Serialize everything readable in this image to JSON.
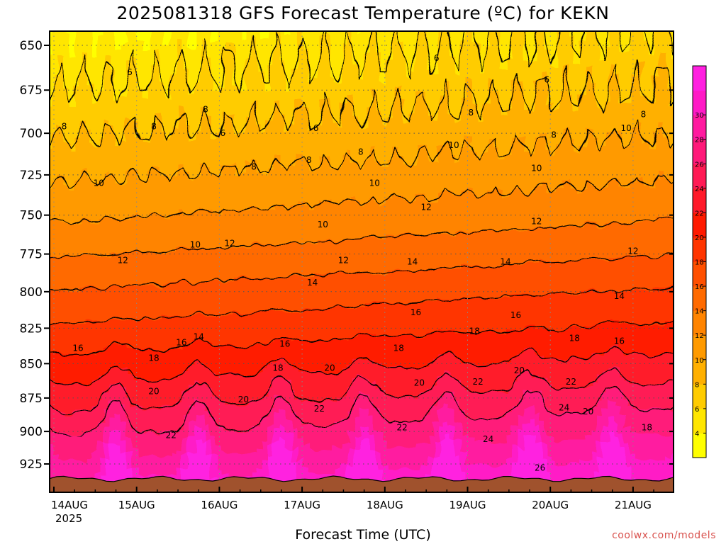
{
  "title": "2025081318 GFS Forecast Temperature (ºC) for KEKN",
  "credit": "coolwx.com/models",
  "chart_data": {
    "type": "heatmap",
    "title": "2025081318 GFS Forecast Temperature (ºC) for KEKN",
    "xlabel": "Forecast Time (UTC)",
    "ylabel": "",
    "ylim": [
      942,
      640
    ],
    "y_scale": "log",
    "xlim_hours": [
      0,
      178
    ],
    "x_ticks": [
      {
        "label": "14AUG",
        "sub": "2025",
        "hour": 0
      },
      {
        "label": "15AUG",
        "sub": "",
        "hour": 24
      },
      {
        "label": "16AUG",
        "sub": "",
        "hour": 48
      },
      {
        "label": "17AUG",
        "sub": "",
        "hour": 72
      },
      {
        "label": "18AUG",
        "sub": "",
        "hour": 96
      },
      {
        "label": "19AUG",
        "sub": "",
        "hour": 120
      },
      {
        "label": "20AUG",
        "sub": "",
        "hour": 144
      },
      {
        "label": "21AUG",
        "sub": "",
        "hour": 168
      }
    ],
    "y_ticks": [
      650,
      675,
      700,
      725,
      750,
      775,
      800,
      825,
      850,
      875,
      900,
      925
    ],
    "grid": true,
    "colorbar": {
      "placement": "right",
      "ticks": [
        4,
        6,
        8,
        10,
        12,
        14,
        16,
        18,
        20,
        22,
        24,
        26,
        28,
        30
      ],
      "colors": [
        "#ffff00",
        "#ffe600",
        "#ffcc00",
        "#ffb000",
        "#ff9a00",
        "#ff8400",
        "#ff6a00",
        "#ff5000",
        "#ff3500",
        "#ff1a00",
        "#ff1a2a",
        "#ff1a55",
        "#ff1a7a",
        "#ff1aa0",
        "#ff1ac6",
        "#ff20e0"
      ]
    },
    "ground_color": "#a0522d",
    "contour_levels": [
      6,
      8,
      10,
      12,
      14,
      16,
      18,
      20,
      22,
      24,
      26
    ],
    "contour_labels": [
      {
        "text": "6",
        "hour": 22,
        "p": 665
      },
      {
        "text": "6",
        "hour": 49,
        "p": 700
      },
      {
        "text": "6",
        "hour": 76,
        "p": 697
      },
      {
        "text": "6",
        "hour": 111,
        "p": 657
      },
      {
        "text": "6",
        "hour": 143,
        "p": 669
      },
      {
        "text": "8",
        "hour": 3,
        "p": 696
      },
      {
        "text": "8",
        "hour": 29,
        "p": 696
      },
      {
        "text": "8",
        "hour": 44,
        "p": 686
      },
      {
        "text": "8",
        "hour": 58,
        "p": 720
      },
      {
        "text": "8",
        "hour": 74,
        "p": 716
      },
      {
        "text": "8",
        "hour": 89,
        "p": 711
      },
      {
        "text": "8",
        "hour": 121,
        "p": 688
      },
      {
        "text": "8",
        "hour": 145,
        "p": 701
      },
      {
        "text": "8",
        "hour": 171,
        "p": 689
      },
      {
        "text": "10",
        "hour": 13,
        "p": 730
      },
      {
        "text": "10",
        "hour": 41,
        "p": 769
      },
      {
        "text": "10",
        "hour": 78,
        "p": 756
      },
      {
        "text": "10",
        "hour": 93,
        "p": 730
      },
      {
        "text": "10",
        "hour": 116,
        "p": 707
      },
      {
        "text": "10",
        "hour": 140,
        "p": 721
      },
      {
        "text": "10",
        "hour": 166,
        "p": 697
      },
      {
        "text": "12",
        "hour": 20,
        "p": 779
      },
      {
        "text": "12",
        "hour": 51,
        "p": 768
      },
      {
        "text": "12",
        "hour": 84,
        "p": 779
      },
      {
        "text": "12",
        "hour": 108,
        "p": 745
      },
      {
        "text": "12",
        "hour": 140,
        "p": 754
      },
      {
        "text": "12",
        "hour": 168,
        "p": 773
      },
      {
        "text": "14",
        "hour": 42,
        "p": 831
      },
      {
        "text": "14",
        "hour": 75,
        "p": 794
      },
      {
        "text": "14",
        "hour": 104,
        "p": 780
      },
      {
        "text": "14",
        "hour": 131,
        "p": 780
      },
      {
        "text": "14",
        "hour": 164,
        "p": 803
      },
      {
        "text": "16",
        "hour": 7,
        "p": 839
      },
      {
        "text": "16",
        "hour": 37,
        "p": 835
      },
      {
        "text": "16",
        "hour": 67,
        "p": 836
      },
      {
        "text": "16",
        "hour": 105,
        "p": 814
      },
      {
        "text": "16",
        "hour": 134,
        "p": 816
      },
      {
        "text": "16",
        "hour": 164,
        "p": 834
      },
      {
        "text": "18",
        "hour": 29,
        "p": 846
      },
      {
        "text": "18",
        "hour": 65,
        "p": 853
      },
      {
        "text": "18",
        "hour": 100,
        "p": 839
      },
      {
        "text": "18",
        "hour": 122,
        "p": 827
      },
      {
        "text": "18",
        "hour": 151,
        "p": 832
      },
      {
        "text": "18",
        "hour": 172,
        "p": 897
      },
      {
        "text": "20",
        "hour": 29,
        "p": 870
      },
      {
        "text": "20",
        "hour": 55,
        "p": 876
      },
      {
        "text": "20",
        "hour": 80,
        "p": 853
      },
      {
        "text": "20",
        "hour": 106,
        "p": 864
      },
      {
        "text": "20",
        "hour": 135,
        "p": 855
      },
      {
        "text": "20",
        "hour": 155,
        "p": 885
      },
      {
        "text": "22",
        "hour": 34,
        "p": 903
      },
      {
        "text": "22",
        "hour": 77,
        "p": 883
      },
      {
        "text": "22",
        "hour": 101,
        "p": 897
      },
      {
        "text": "22",
        "hour": 123,
        "p": 863
      },
      {
        "text": "22",
        "hour": 150,
        "p": 863
      },
      {
        "text": "24",
        "hour": 126,
        "p": 906
      },
      {
        "text": "24",
        "hour": 148,
        "p": 882
      },
      {
        "text": "26",
        "hour": 141,
        "p": 928
      }
    ]
  }
}
